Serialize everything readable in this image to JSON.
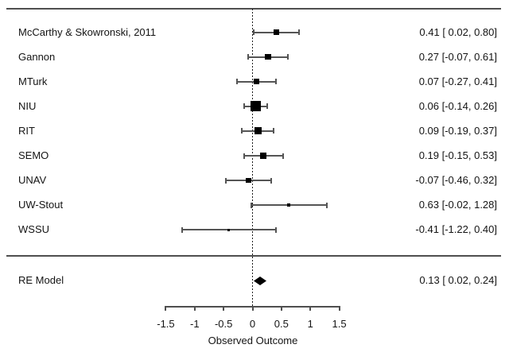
{
  "chart_data": {
    "type": "forest",
    "title": "",
    "xlabel": "Observed Outcome",
    "xticks": [
      -1.5,
      -1,
      -0.5,
      0,
      0.5,
      1,
      1.5
    ],
    "xtick_labels": [
      "-1.5",
      "-1",
      "-0.5",
      "0",
      "0.5",
      "1",
      "1.5"
    ],
    "xlim": [
      -1.5,
      1.5
    ],
    "reference_line": 0,
    "legend_position": "none",
    "grid": false,
    "studies": [
      {
        "label": "McCarthy & Skowronski, 2011",
        "estimate": 0.41,
        "ci_low": 0.02,
        "ci_high": 0.8,
        "display": "0.41 [ 0.02, 0.80]",
        "marker_px": 7
      },
      {
        "label": "Gannon",
        "estimate": 0.27,
        "ci_low": -0.07,
        "ci_high": 0.61,
        "display": "0.27 [-0.07, 0.61]",
        "marker_px": 7.5
      },
      {
        "label": "MTurk",
        "estimate": 0.07,
        "ci_low": -0.27,
        "ci_high": 0.41,
        "display": "0.07 [-0.27, 0.41]",
        "marker_px": 7.5
      },
      {
        "label": "NIU",
        "estimate": 0.06,
        "ci_low": -0.14,
        "ci_high": 0.26,
        "display": "0.06 [-0.14, 0.26]",
        "marker_px": 13
      },
      {
        "label": "RIT",
        "estimate": 0.09,
        "ci_low": -0.19,
        "ci_high": 0.37,
        "display": "0.09 [-0.19, 0.37]",
        "marker_px": 9
      },
      {
        "label": "SEMO",
        "estimate": 0.19,
        "ci_low": -0.15,
        "ci_high": 0.53,
        "display": "0.19 [-0.15, 0.53]",
        "marker_px": 8
      },
      {
        "label": "UNAV",
        "estimate": -0.07,
        "ci_low": -0.46,
        "ci_high": 0.32,
        "display": "-0.07 [-0.46, 0.32]",
        "marker_px": 6.5
      },
      {
        "label": "UW-Stout",
        "estimate": 0.63,
        "ci_low": -0.02,
        "ci_high": 1.28,
        "display": "0.63 [-0.02, 1.28]",
        "marker_px": 4
      },
      {
        "label": "WSSU",
        "estimate": -0.41,
        "ci_low": -1.22,
        "ci_high": 0.4,
        "display": "-0.41 [-1.22, 0.40]",
        "marker_px": 3.5
      }
    ],
    "summary": {
      "label": "RE Model",
      "estimate": 0.13,
      "ci_low": 0.02,
      "ci_high": 0.24,
      "display": "0.13 [ 0.02, 0.24]"
    },
    "colors": {
      "marker": "#000000",
      "ci_line": "#555555",
      "rule": "#4f4f4f",
      "text": "#141414"
    }
  }
}
